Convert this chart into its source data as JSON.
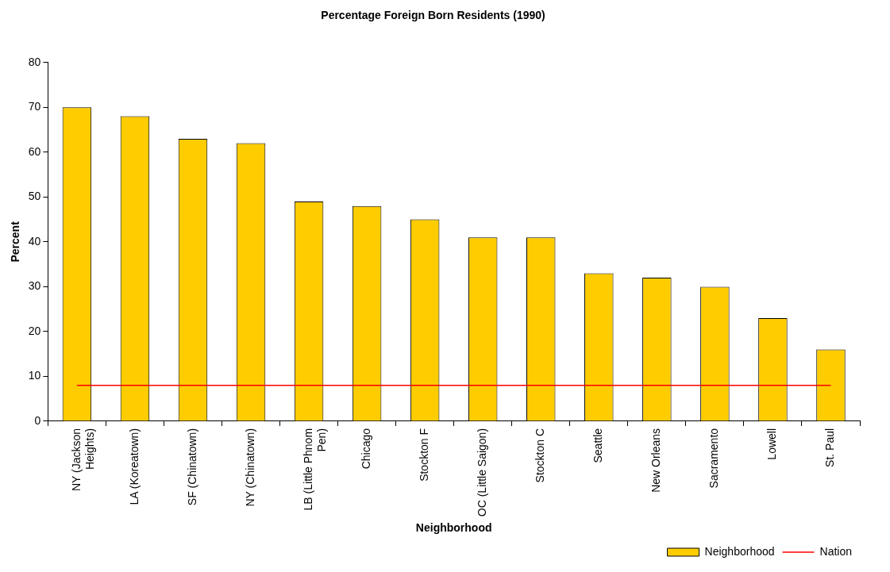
{
  "chart_data": {
    "type": "bar",
    "title": "Percentage Foreign Born Residents (1990)",
    "xlabel": "Neighborhood",
    "ylabel": "Percent",
    "categories": [
      "NY (Jackson Heights)",
      "LA (Koreatown)",
      "SF (Chinatown)",
      "NY (Chinatown)",
      "LB (Little Phnom Pen)",
      "Chicago",
      "Stockton F",
      "OC (Little Saigon)",
      "Stockton C",
      "Seattle",
      "New Orleans",
      "Sacramento",
      "Lowell",
      "St. Paul"
    ],
    "series": [
      {
        "name": "Neighborhood",
        "color": "#ffcc00",
        "values": [
          70,
          68,
          63,
          62,
          49,
          48,
          45,
          41,
          41,
          33,
          32,
          30,
          23,
          16
        ]
      },
      {
        "name": "Nation",
        "type": "line",
        "color": "#ff0000",
        "values": [
          8,
          8,
          8,
          8,
          8,
          8,
          8,
          8,
          8,
          8,
          8,
          8,
          8,
          8
        ]
      }
    ],
    "ylim": [
      0,
      80
    ],
    "yticks": [
      0,
      10,
      20,
      30,
      40,
      50,
      60,
      70,
      80
    ],
    "legend": "bottom right",
    "marker": "none"
  }
}
